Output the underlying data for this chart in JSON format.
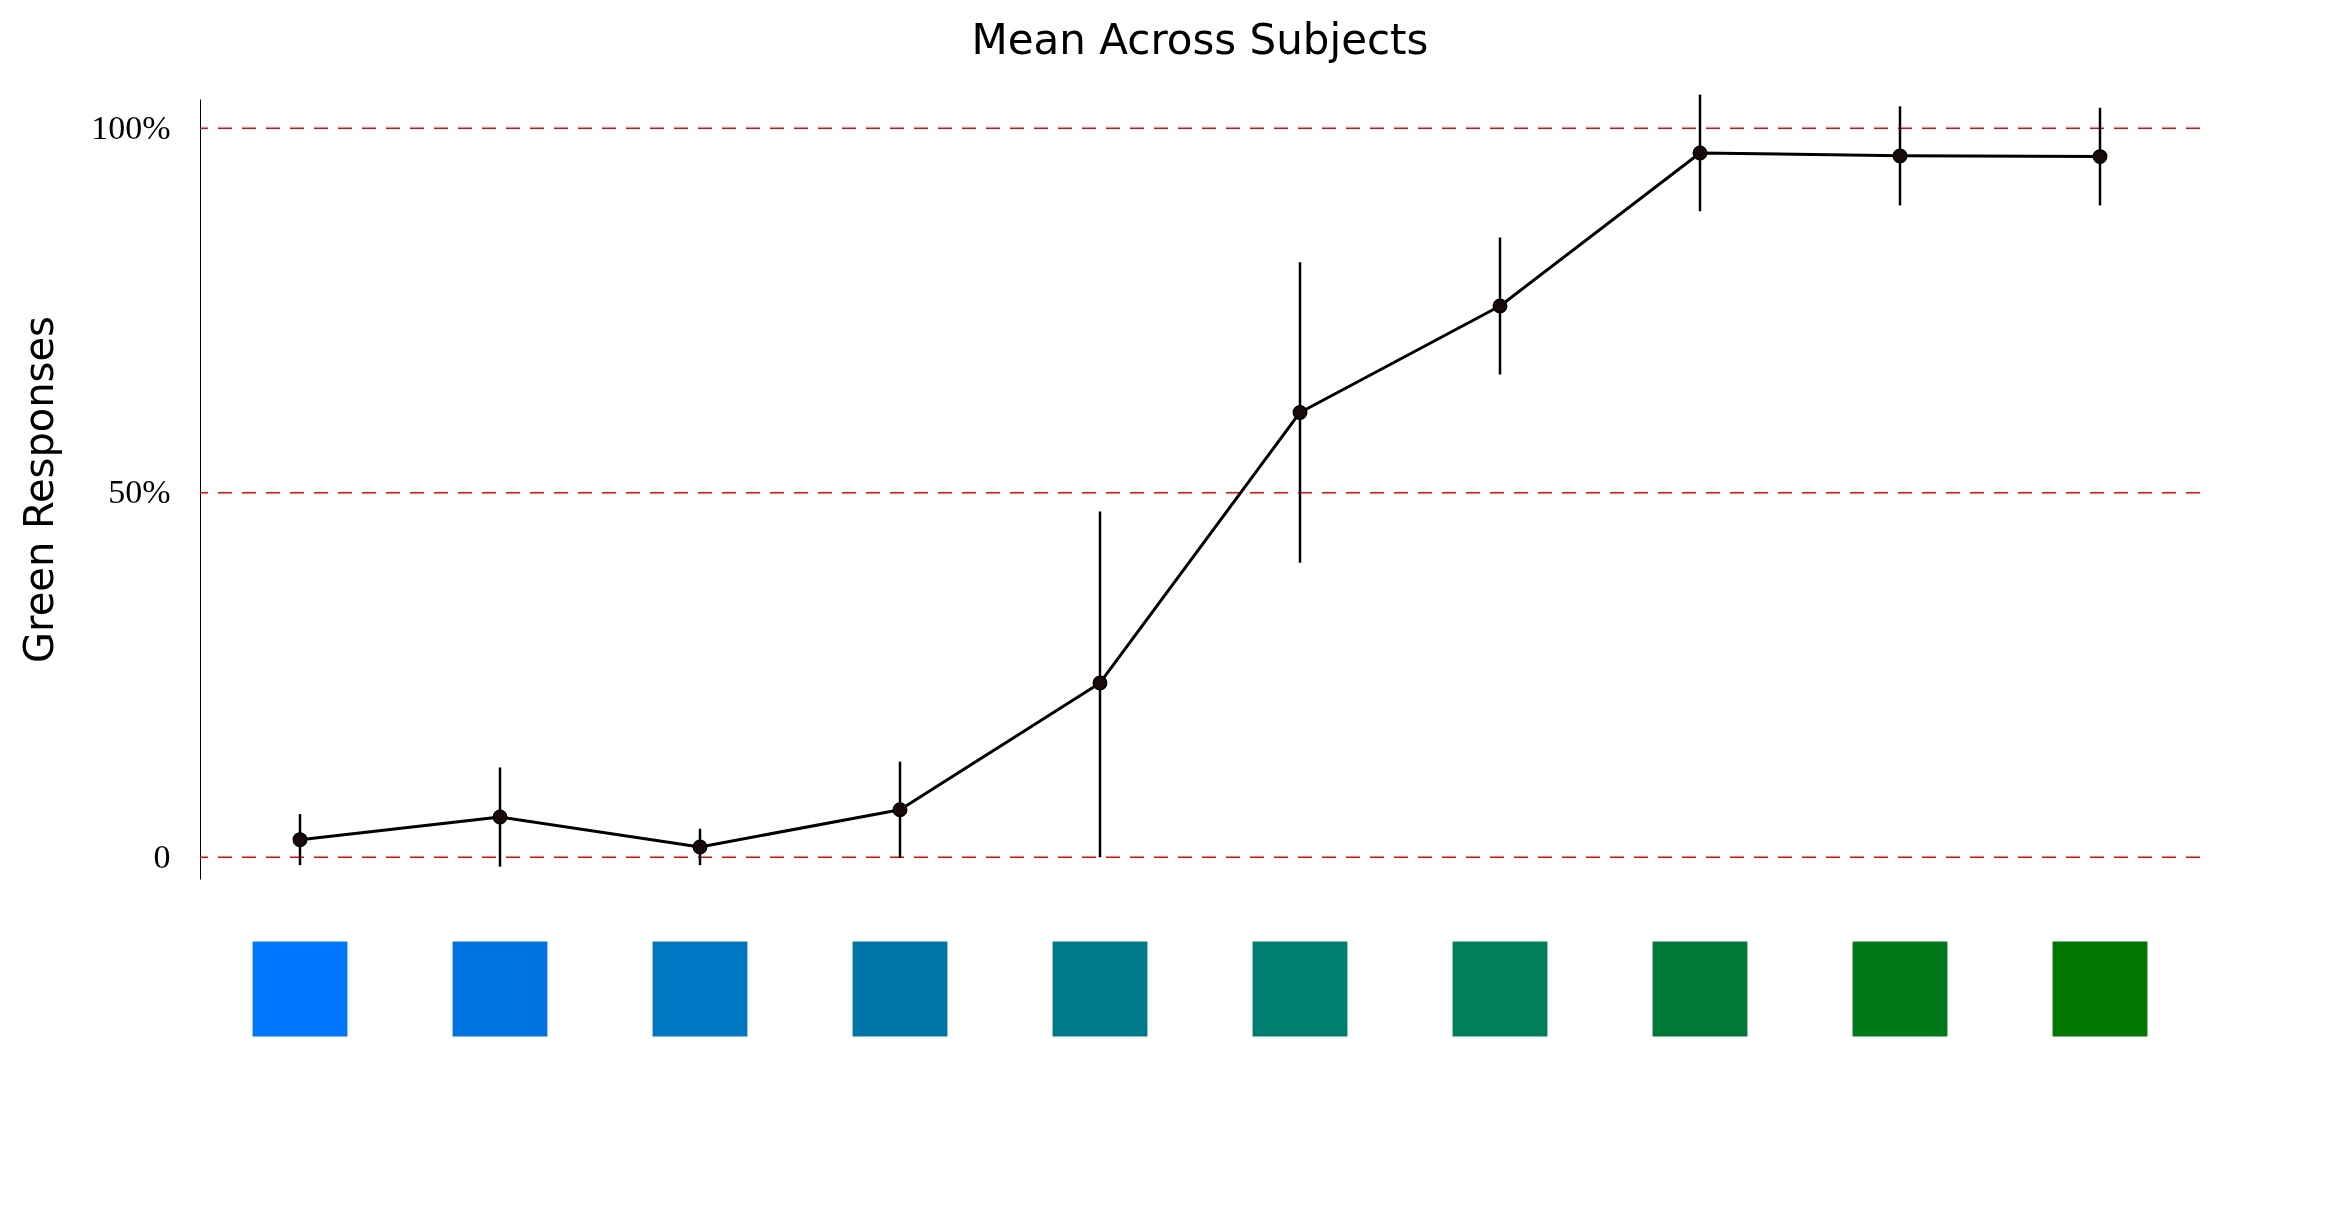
{
  "chart_data": {
    "type": "line",
    "title": "Mean Across Subjects",
    "ylabel": "Green Responses",
    "categories": [
      null,
      null,
      null,
      null,
      null,
      null,
      null,
      null,
      null,
      null
    ],
    "colors": [
      "#0077ff",
      "#0074e0",
      "#0077c0",
      "#0076a8",
      "#007a8a",
      "#007f70",
      "#007f58",
      "#007a38",
      "#007a18",
      "#007800"
    ],
    "series": [
      {
        "color": "#000000",
        "values": [
          2.4,
          5.5,
          1.4,
          6.5,
          23.9,
          61.0,
          75.6,
          96.6,
          96.2,
          96.1
        ],
        "errors": [
          3.5,
          6.8,
          2.5,
          6.6,
          [
            0,
            47.4
          ],
          20.6,
          9.4,
          8,
          6.8,
          6.7
        ]
      }
    ],
    "ylim": [
      -3,
      104
    ],
    "yticks": [
      {
        "value": 0,
        "label": "0"
      },
      {
        "value": 50,
        "label": "50%"
      },
      {
        "value": 100,
        "label": "100%"
      }
    ],
    "ref_lines": [
      {
        "axis": "y",
        "value": 0,
        "color": "#ff0000",
        "line_style": "dashed"
      },
      {
        "axis": "y",
        "value": 50,
        "color": "#ff0000",
        "line_style": "dashed"
      },
      {
        "axis": "y",
        "value": 100,
        "color": "#ff0000",
        "line_style": "dashed"
      }
    ],
    "marker": "circle",
    "line_style": "solid"
  }
}
